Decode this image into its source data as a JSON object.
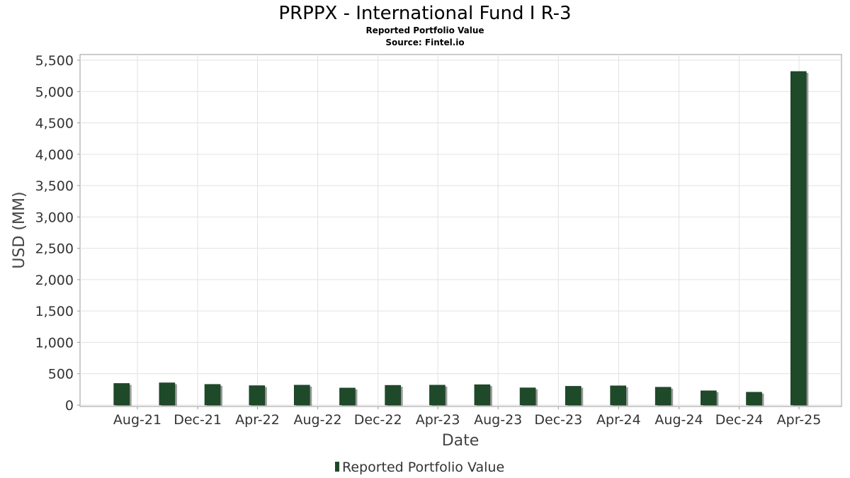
{
  "chart_data": {
    "type": "bar",
    "title": "PRPPX - International Fund I R-3",
    "subtitle": "Reported Portfolio Value",
    "source": "Source: Fintel.io",
    "xlabel": "Date",
    "ylabel": "USD (MM)",
    "ylim": [
      0,
      5500
    ],
    "yticks": [
      0,
      500,
      1000,
      1500,
      2000,
      2500,
      3000,
      3500,
      4000,
      4500,
      5000,
      5500
    ],
    "ytick_labels": [
      "0",
      "500",
      "1,000",
      "1,500",
      "2,000",
      "2,500",
      "3,000",
      "3,500",
      "4,000",
      "4,500",
      "5,000",
      "5,500"
    ],
    "xtick_labels": [
      "Aug-21",
      "Dec-21",
      "Apr-22",
      "Aug-22",
      "Dec-22",
      "Apr-23",
      "Aug-23",
      "Dec-23",
      "Apr-24",
      "Aug-24",
      "Dec-24",
      "Apr-25"
    ],
    "grid": true,
    "legend_position": "bottom-center",
    "series": [
      {
        "name": "Reported Portfolio Value",
        "color": "#1e4a2a",
        "points": [
          {
            "date": "2021-06-30",
            "value": 345
          },
          {
            "date": "2021-09-30",
            "value": 355
          },
          {
            "date": "2021-12-31",
            "value": 330
          },
          {
            "date": "2022-03-31",
            "value": 310
          },
          {
            "date": "2022-06-30",
            "value": 318
          },
          {
            "date": "2022-09-30",
            "value": 272
          },
          {
            "date": "2022-12-31",
            "value": 315
          },
          {
            "date": "2023-03-31",
            "value": 318
          },
          {
            "date": "2023-06-30",
            "value": 325
          },
          {
            "date": "2023-09-30",
            "value": 275
          },
          {
            "date": "2023-12-31",
            "value": 300
          },
          {
            "date": "2024-03-31",
            "value": 307
          },
          {
            "date": "2024-06-30",
            "value": 285
          },
          {
            "date": "2024-09-30",
            "value": 228
          },
          {
            "date": "2024-12-31",
            "value": 205
          },
          {
            "date": "2025-03-31",
            "value": 5320
          }
        ]
      }
    ]
  }
}
